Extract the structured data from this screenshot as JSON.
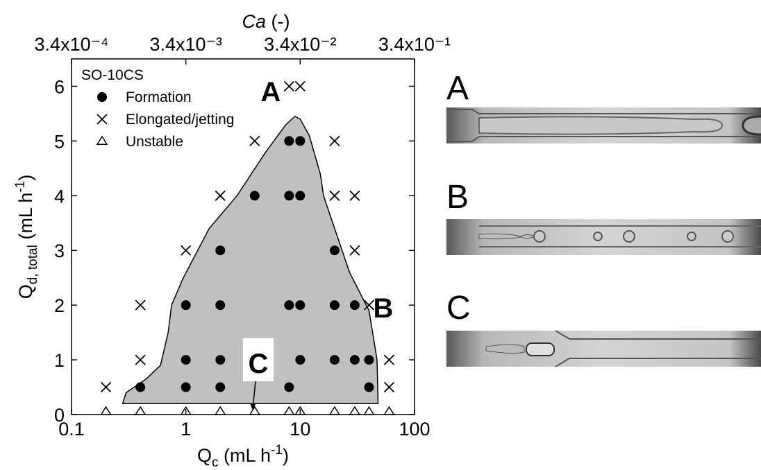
{
  "chart_data": {
    "type": "scatter",
    "xscale": "log",
    "xlim": [
      0.1,
      100
    ],
    "xticks": [
      0.1,
      1,
      10,
      100
    ],
    "ylim": [
      0,
      6.5
    ],
    "yticks": [
      0,
      1,
      2,
      3,
      4,
      5,
      6
    ],
    "x2scale": "log",
    "x2lim": [
      0.00034,
      0.34
    ],
    "x2ticks": [
      {
        "value": 0.00034,
        "label": "3.4x10⁻⁴"
      },
      {
        "value": 0.0034,
        "label": "3.4x10⁻³"
      },
      {
        "value": 0.034,
        "label": "3.4x10⁻²"
      },
      {
        "value": 0.34,
        "label": "3.4x10⁻¹"
      }
    ],
    "x_label": [
      {
        "text": "Q"
      },
      {
        "text": "c",
        "sub": true
      },
      {
        "text": " (mL h"
      },
      {
        "text": "-1",
        "sup": true
      },
      {
        "text": ")"
      }
    ],
    "y_label": [
      {
        "text": "Q"
      },
      {
        "text": "d, total",
        "sub": true
      },
      {
        "text": " (mL h"
      },
      {
        "text": "-1",
        "sup": true
      },
      {
        "text": ")"
      }
    ],
    "x2_label": [
      {
        "text": "Ca",
        "italic": true
      },
      {
        "text": " (-)"
      }
    ],
    "legend_title": "SO-10CS",
    "legend": "upper left",
    "series": [
      {
        "name": "Formation",
        "marker": "circle",
        "color": "#000000",
        "x": [
          0.4,
          1,
          1,
          1,
          2,
          2,
          2,
          2,
          4,
          8,
          8,
          8,
          8,
          10,
          10,
          10,
          10,
          20,
          20,
          20,
          30,
          30,
          40,
          40
        ],
        "values": [
          0.5,
          0.5,
          1,
          2,
          0.5,
          1,
          2,
          3,
          4,
          0.5,
          2,
          4,
          5,
          1,
          2,
          4,
          5,
          1,
          2,
          3,
          1,
          2,
          0.5,
          1
        ]
      },
      {
        "name": "Elongated/jetting",
        "marker": "cross",
        "color": "#000000",
        "x": [
          0.2,
          0.4,
          0.4,
          1,
          2,
          4,
          8,
          10,
          20,
          20,
          30,
          30,
          40,
          60,
          60
        ],
        "values": [
          0.5,
          1,
          2,
          3,
          4,
          5,
          6,
          6,
          5,
          4,
          4,
          3,
          2,
          1,
          0.5
        ]
      },
      {
        "name": "Unstable",
        "marker": "triangle",
        "color": "#000000",
        "x": [
          0.2,
          0.4,
          1,
          2,
          4,
          8,
          10,
          20,
          30,
          40,
          60
        ],
        "values": [
          0.05,
          0.05,
          0.05,
          0.05,
          0.05,
          0.05,
          0.05,
          0.05,
          0.05,
          0.05,
          0.05
        ]
      }
    ],
    "region": {
      "color": "#c0c0c0",
      "x": [
        0.28,
        0.3,
        0.45,
        0.6,
        0.7,
        0.75,
        0.95,
        1.6,
        2.8,
        5,
        7.5,
        9,
        10,
        12,
        15,
        16,
        20,
        27,
        40,
        47,
        48
      ],
      "values": [
        0.2,
        0.4,
        0.65,
        0.9,
        1.5,
        2.0,
        2.5,
        3.4,
        4.0,
        4.8,
        5.3,
        5.45,
        5.4,
        5.1,
        4.4,
        4.0,
        3.4,
        2.6,
        1.9,
        1.0,
        0.2
      ]
    },
    "annotations": [
      "A",
      "B",
      "C"
    ]
  },
  "panels": [
    "A",
    "B",
    "C"
  ]
}
